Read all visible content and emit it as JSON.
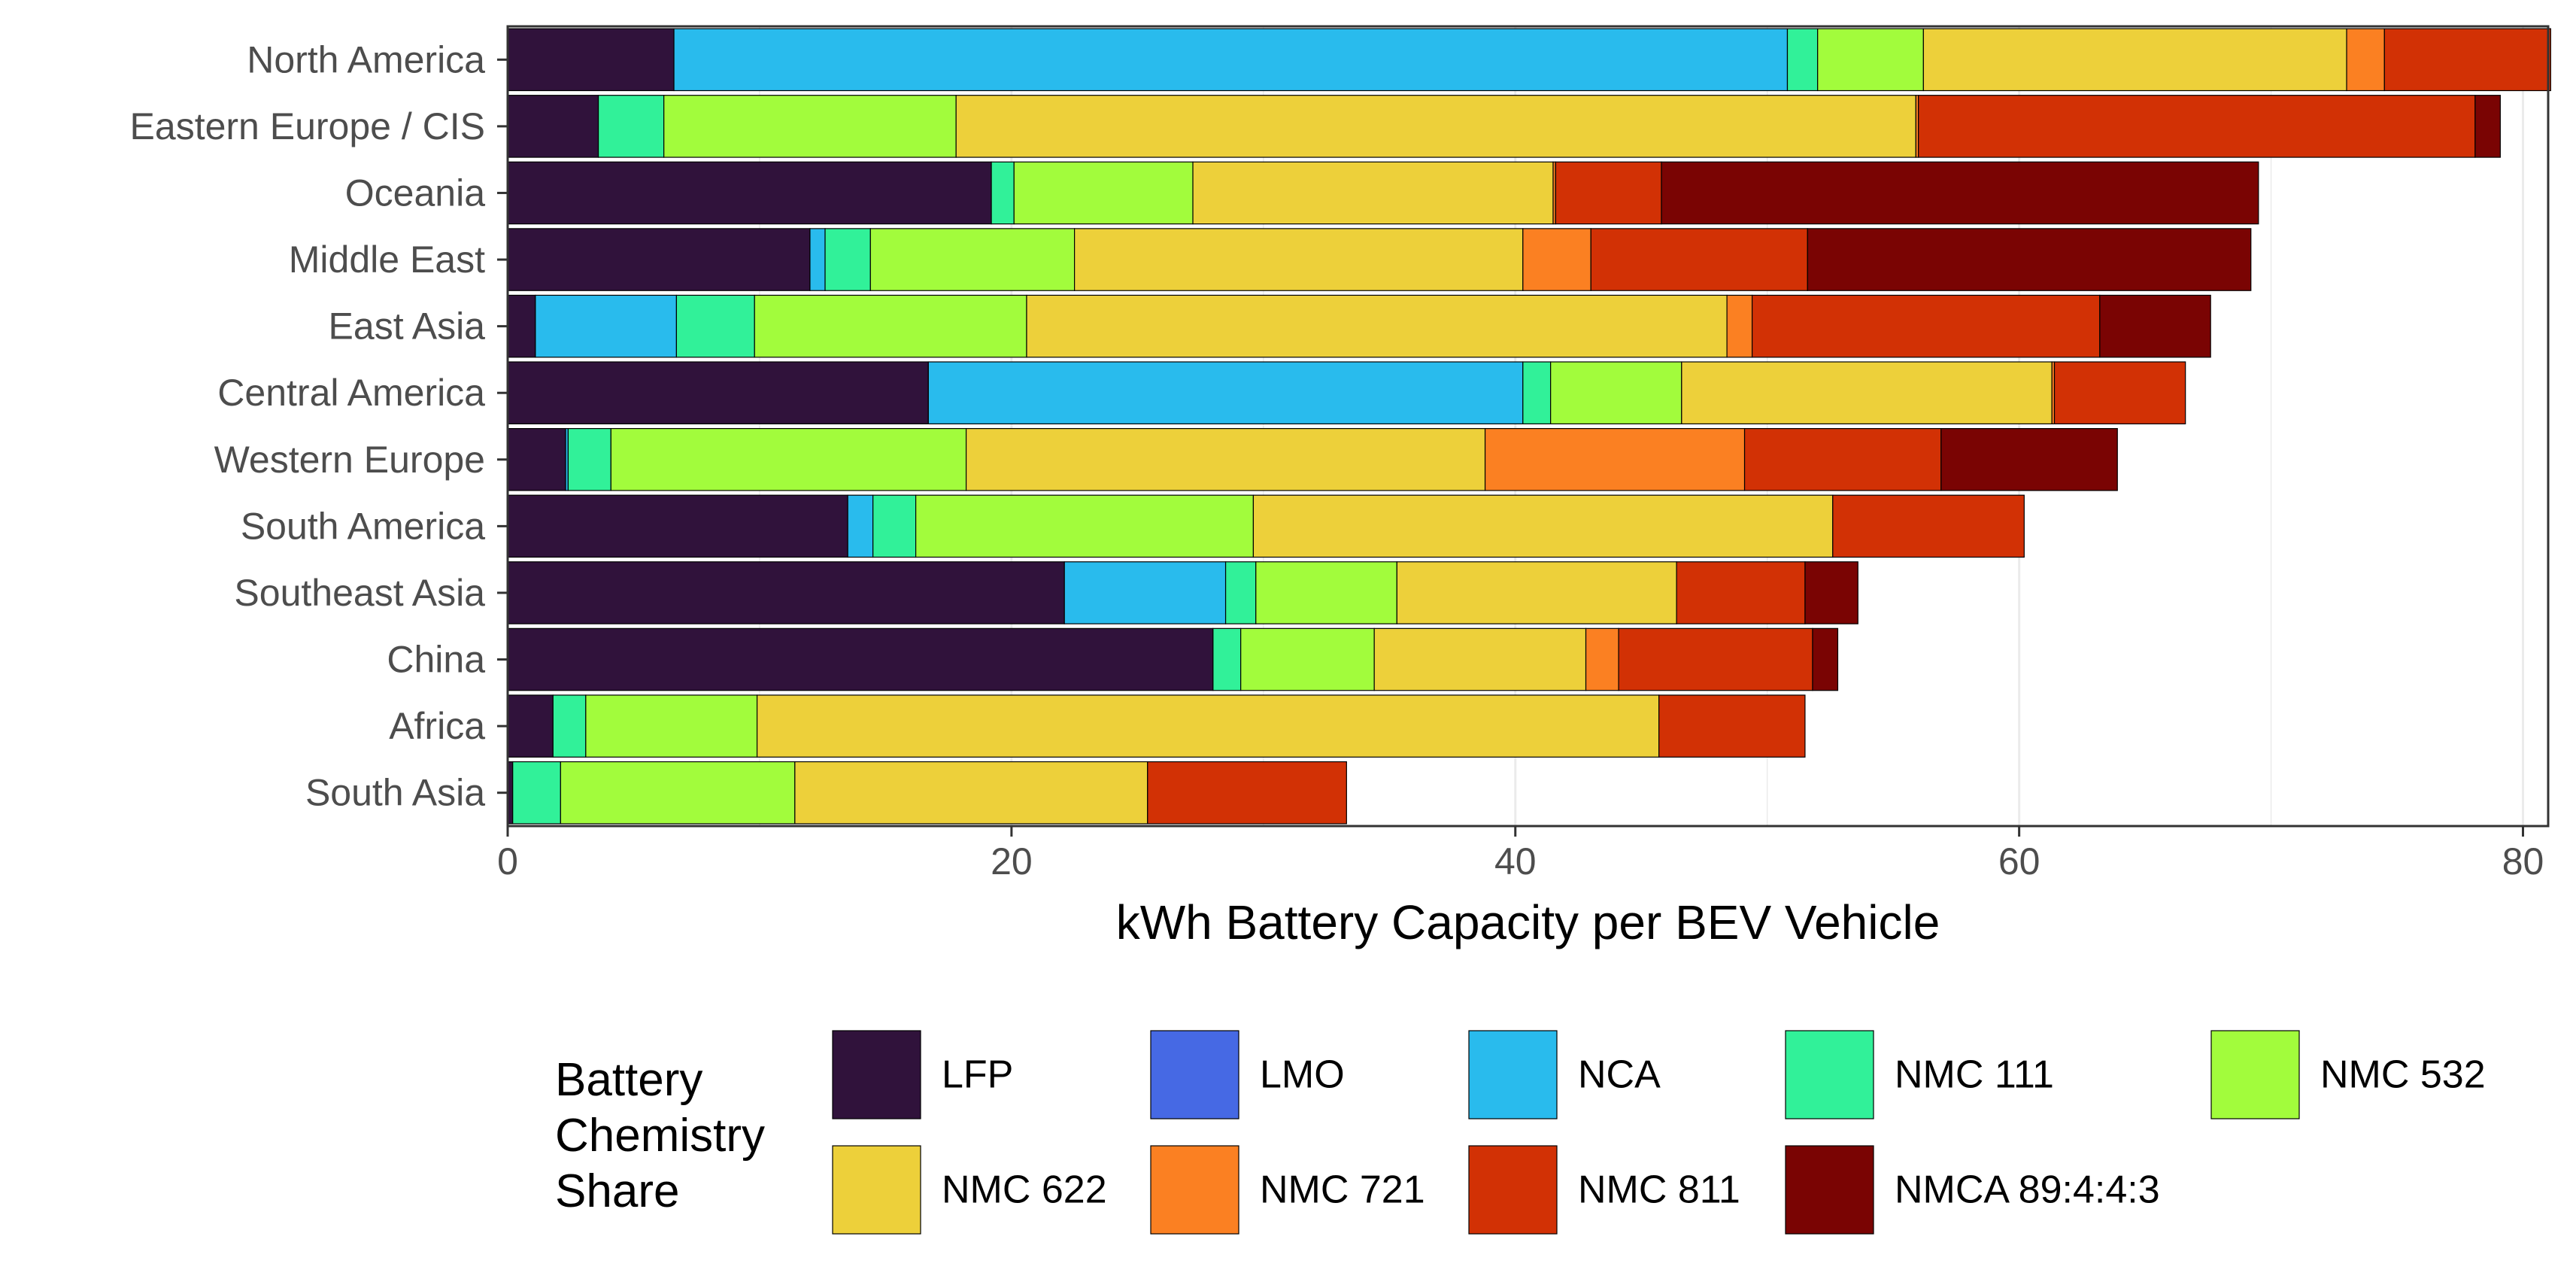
{
  "chart_data": {
    "type": "bar",
    "orientation": "horizontal",
    "stacked": true,
    "title": "",
    "xlabel": "kWh Battery Capacity per BEV Vehicle",
    "ylabel": "",
    "xlim": [
      0,
      81
    ],
    "xticks": [
      0,
      20,
      40,
      60,
      80
    ],
    "grid": true,
    "legend_position": "bottom",
    "legend_title": [
      "Battery",
      "Chemistry",
      "Share"
    ],
    "categories": [
      "North America",
      "Eastern Europe / CIS",
      "Oceania",
      "Middle East",
      "East Asia",
      "Central America",
      "Western Europe",
      "South America",
      "Southeast Asia",
      "China",
      "Africa",
      "South Asia"
    ],
    "series": [
      {
        "name": "LFP",
        "color": "#30123b",
        "values": [
          6.6,
          3.6,
          19.2,
          12.0,
          1.1,
          16.7,
          2.3,
          13.5,
          22.1,
          28.0,
          1.8,
          0.2
        ]
      },
      {
        "name": "LMO",
        "color": "#4669e4",
        "values": [
          0,
          0,
          0,
          0,
          0,
          0,
          0,
          0,
          0,
          0,
          0,
          0
        ]
      },
      {
        "name": "NCA",
        "color": "#29bbed",
        "values": [
          44.2,
          0,
          0,
          0.6,
          5.6,
          23.6,
          0.1,
          1.0,
          6.4,
          0,
          0,
          0
        ]
      },
      {
        "name": "NMC 111",
        "color": "#31f199",
        "values": [
          1.2,
          2.6,
          0.9,
          1.8,
          3.1,
          1.1,
          1.7,
          1.7,
          1.2,
          1.1,
          1.3,
          1.9
        ]
      },
      {
        "name": "NMC 532",
        "color": "#a2fc3c",
        "values": [
          4.2,
          11.6,
          7.1,
          8.1,
          10.8,
          5.2,
          14.1,
          13.4,
          5.6,
          5.3,
          6.8,
          9.3
        ]
      },
      {
        "name": "NMC 622",
        "color": "#edd03a",
        "values": [
          16.8,
          38.1,
          14.3,
          17.8,
          27.8,
          14.7,
          20.6,
          23.0,
          11.1,
          8.4,
          35.8,
          14.0
        ]
      },
      {
        "name": "NMC 721",
        "color": "#fb8022",
        "values": [
          1.5,
          0.1,
          0.1,
          2.7,
          1.0,
          0.1,
          10.3,
          0,
          0,
          1.3,
          0,
          0
        ]
      },
      {
        "name": "NMC 811",
        "color": "#d23105",
        "values": [
          6.6,
          22.1,
          4.2,
          8.6,
          13.8,
          5.2,
          7.8,
          7.6,
          5.1,
          7.7,
          5.8,
          7.9
        ]
      },
      {
        "name": "NMCA 89:4:4:3",
        "color": "#7a0403",
        "values": [
          0,
          1.0,
          23.7,
          17.6,
          4.4,
          0,
          7.0,
          0,
          2.1,
          1.0,
          0,
          0
        ]
      }
    ]
  }
}
